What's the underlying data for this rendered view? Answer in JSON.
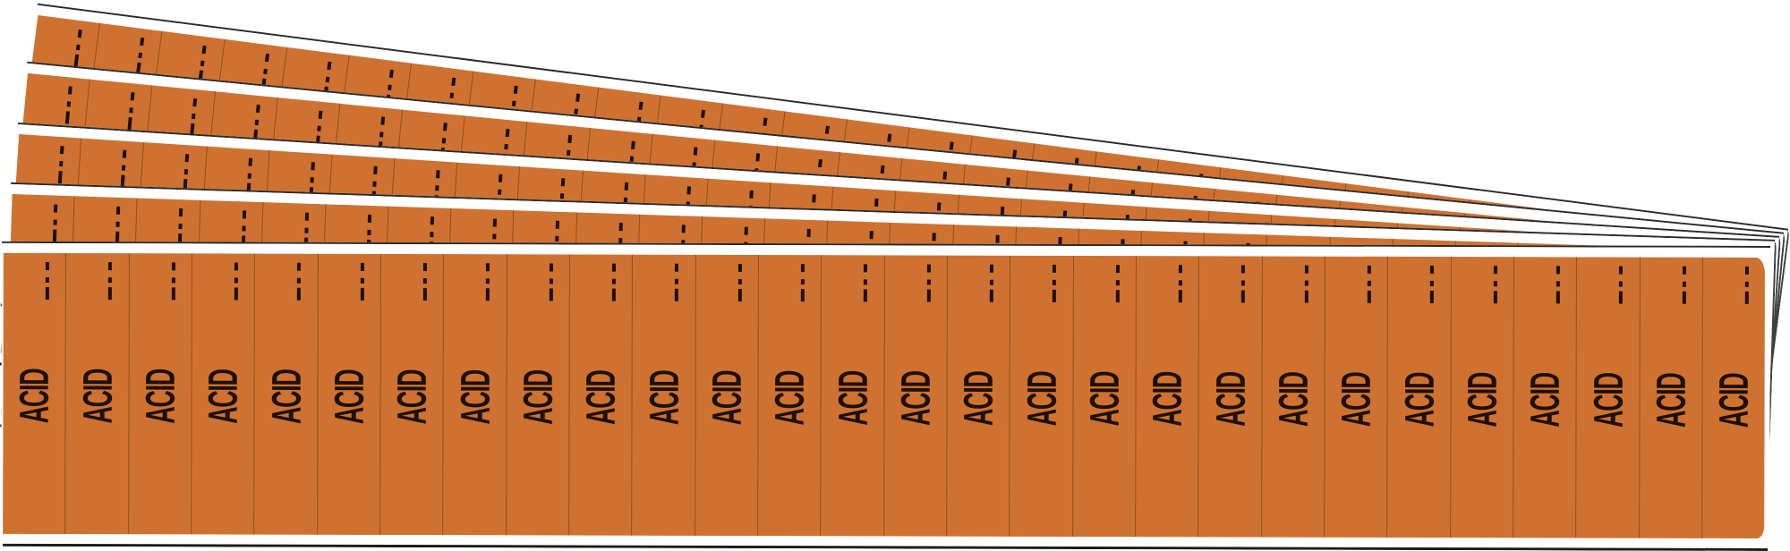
{
  "product_image": {
    "label_text": "ACID",
    "sheet_count": 5,
    "labels_per_sheet": 28,
    "tick_icon": "dashed-tick-mark"
  },
  "colors": {
    "label_orange": "#cf7231",
    "ink_black": "#1d1006",
    "outline_dark": "#2b2b2b",
    "bottom_edge_black": "#1d1d1d",
    "divider_brown": "#562c0e",
    "background": "#ffffff"
  }
}
